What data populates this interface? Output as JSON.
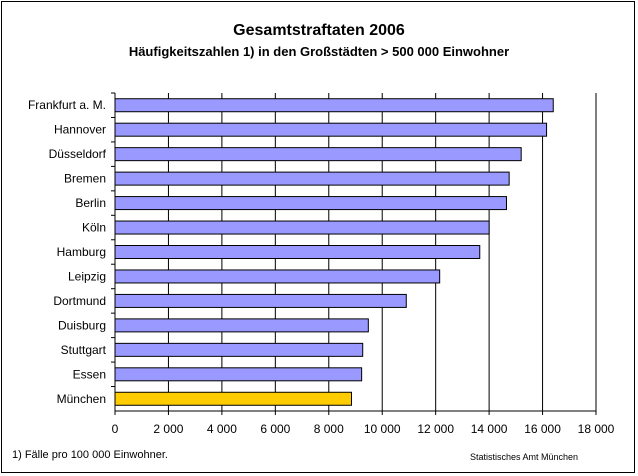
{
  "chart_data": {
    "type": "bar",
    "orientation": "horizontal",
    "title": "Gesamtstraftaten 2006",
    "subtitle": "Häufigkeitszahlen 1) in den Großstädten > 500 000 Einwohner",
    "categories": [
      "Frankfurt a. M.",
      "Hannover",
      "Düsseldorf",
      "Bremen",
      "Berlin",
      "Köln",
      "Hamburg",
      "Leipzig",
      "Dortmund",
      "Duisburg",
      "Stuttgart",
      "Essen",
      "München"
    ],
    "values": [
      16400,
      16150,
      15200,
      14750,
      14650,
      14000,
      13650,
      12150,
      10900,
      9480,
      9270,
      9230,
      8850
    ],
    "highlight": "München",
    "xlim": [
      0,
      18000
    ],
    "xticks": [
      0,
      2000,
      4000,
      6000,
      8000,
      10000,
      12000,
      14000,
      16000,
      18000
    ],
    "xtick_labels": [
      "0",
      "2 000",
      "4 000",
      "6 000",
      "8 000",
      "10 000",
      "12 000",
      "14 000",
      "16 000",
      "18 000"
    ],
    "grid": "vertical",
    "colors": {
      "bar": "#9999ff",
      "highlight": "#ffcc00",
      "edge": "#000000"
    },
    "footnote": "1)  Fälle pro 100 000 Einwohner.",
    "source": "Statistisches Amt München"
  }
}
